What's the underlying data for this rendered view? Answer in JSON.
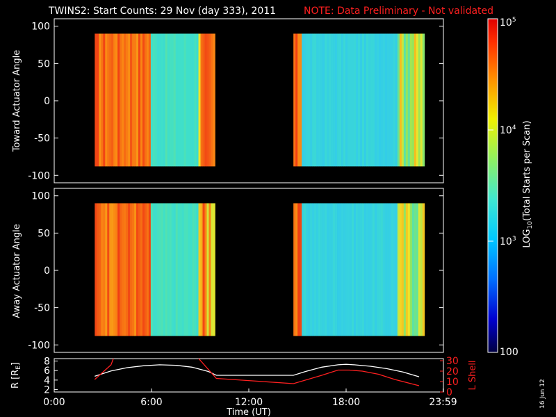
{
  "header": {
    "title": "TWINS2: Start Counts: 29 Nov (day 333), 2011",
    "note": "NOTE: Data Preliminary - Not validated"
  },
  "stamp": "16 Jun 12",
  "colorbar": {
    "label": "LOG",
    "label_sub": "10",
    "label_rest": "(Total Starts per Scan)",
    "tick_labels": [
      "100",
      "10",
      "10",
      "10"
    ],
    "tick_exps": [
      "",
      "3",
      "4",
      "5"
    ],
    "range": [
      2,
      5
    ]
  },
  "chart_data": [
    {
      "type": "heatmap",
      "ylabel": "Toward Actuator Angle",
      "ylim": [
        -110,
        110
      ],
      "yticks": [
        "100",
        "50",
        "0",
        "-50",
        "-100"
      ],
      "ytick_values": [
        100,
        50,
        0,
        -50,
        -100
      ],
      "x_range_hours": [
        0,
        24
      ],
      "data_segments": [
        {
          "start": "02:30",
          "end": "09:55"
        },
        {
          "start": "14:45",
          "end": "22:50"
        }
      ],
      "angle_range": [
        -88,
        90
      ],
      "colors": {
        "high": "#f06018",
        "mid": "#40e0c0",
        "low": "#30c8f0"
      }
    },
    {
      "type": "heatmap",
      "ylabel": "Away Actuator Angle",
      "ylim": [
        -110,
        110
      ],
      "yticks": [
        "100",
        "50",
        "0",
        "-50",
        "-100"
      ],
      "ytick_values": [
        100,
        50,
        0,
        -50,
        -100
      ],
      "x_range_hours": [
        0,
        24
      ],
      "data_segments": [
        {
          "start": "02:30",
          "end": "09:55"
        },
        {
          "start": "14:45",
          "end": "22:50"
        }
      ],
      "angle_range": [
        -88,
        90
      ],
      "colors": {
        "high": "#f06018",
        "mid": "#40e0c0",
        "low": "#30c8f0"
      }
    },
    {
      "type": "line",
      "ylabel_left": "R [R",
      "ylabel_left_sub": "E",
      "ylabel_left_close": "]",
      "ylabel_right": "L Shell",
      "xlabel": "Time (UT)",
      "xticks": [
        "0:00",
        "6:00",
        "12:00",
        "18:00",
        "23:59"
      ],
      "xtick_hours": [
        0,
        6,
        12,
        18,
        23.98
      ],
      "ylim_left": [
        1.5,
        8.5
      ],
      "yticks_left": [
        "2",
        "4",
        "6",
        "8"
      ],
      "ytick_left_values": [
        2,
        4,
        6,
        8
      ],
      "ylim_right": [
        0,
        32
      ],
      "yticks_right": [
        "0",
        "10",
        "20",
        "30"
      ],
      "ytick_right_values": [
        0,
        10,
        20,
        30
      ],
      "series": [
        {
          "axis": "left",
          "color": "#ffffff",
          "x": [
            2.5,
            3.5,
            4.5,
            5.5,
            6.5,
            7.5,
            8.5,
            9.5,
            10.0,
            14.75,
            15.5,
            16.5,
            17.5,
            18.0,
            18.5,
            19.5,
            20.5,
            21.5,
            22.5
          ],
          "y": [
            4.8,
            5.9,
            6.6,
            7.0,
            7.2,
            7.1,
            6.7,
            5.8,
            5.0,
            5.0,
            5.8,
            6.7,
            7.2,
            7.3,
            7.2,
            6.9,
            6.4,
            5.7,
            4.7
          ]
        },
        {
          "axis": "right",
          "color": "#ff2020",
          "x": [
            2.5,
            3.5,
            3.7,
            8.8,
            10.0,
            14.75,
            16.5,
            17.5,
            18.2,
            19.0,
            20.0,
            21.0,
            22.5
          ],
          "y": [
            12,
            26,
            34,
            34,
            13,
            8,
            16,
            21,
            21,
            20,
            17,
            12,
            6
          ]
        }
      ]
    }
  ]
}
